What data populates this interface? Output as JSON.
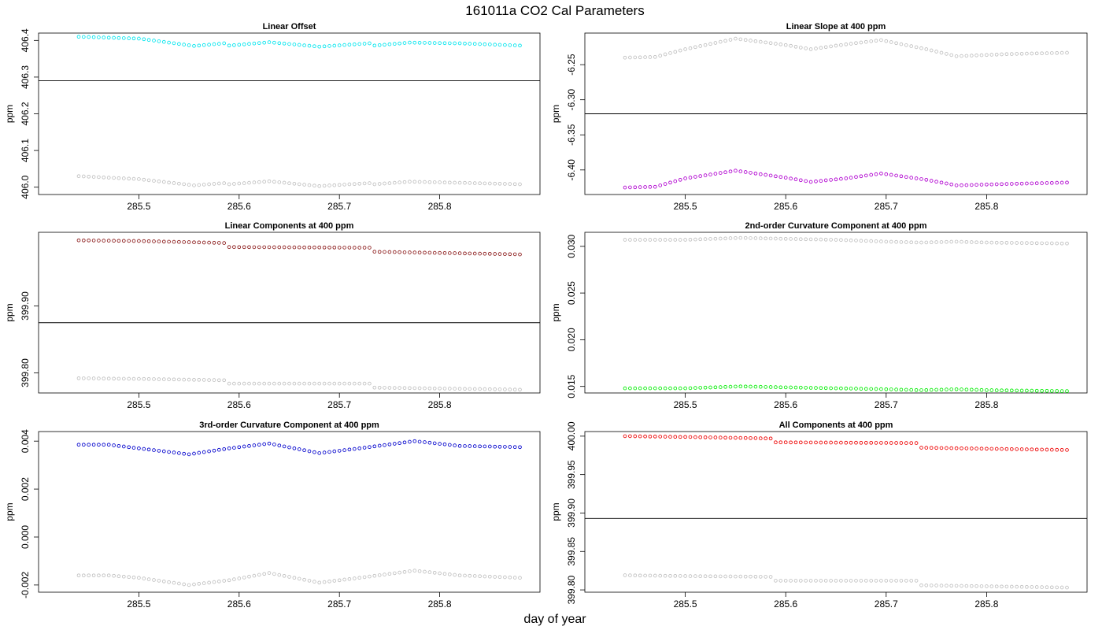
{
  "figure": {
    "title": "161011a   CO2 Cal Parameters",
    "xlabel": "day of year"
  },
  "colors": {
    "gray_points": "#c0c0c0",
    "reference_line": "#000000"
  },
  "chart_data": [
    {
      "type": "scatter",
      "title": "Linear Offset",
      "ylabel": "ppm",
      "xlim": [
        285.4,
        285.9
      ],
      "ylim": [
        405.98,
        406.42
      ],
      "xticks": [
        285.5,
        285.6,
        285.7,
        285.8
      ],
      "xtick_labels": [
        "285.5",
        "285.6",
        "285.7",
        "285.8"
      ],
      "yticks": [
        406.0,
        406.1,
        406.2,
        406.3,
        406.4
      ],
      "ytick_labels": [
        "406.0",
        "406.1",
        "406.2",
        "406.3",
        "406.4"
      ],
      "hline": 406.29,
      "x_start": 285.44,
      "x_step": 0.005,
      "n": 89,
      "series": [
        {
          "color": "#00e5ee",
          "knots": [
            [
              285.44,
              406.41
            ],
            [
              285.5,
              406.405
            ],
            [
              285.555,
              406.385
            ],
            [
              285.585,
              406.392
            ],
            [
              285.59,
              406.386
            ],
            [
              285.63,
              406.395
            ],
            [
              285.68,
              406.383
            ],
            [
              285.73,
              406.392
            ],
            [
              285.735,
              406.386
            ],
            [
              285.77,
              406.394
            ],
            [
              285.82,
              406.392
            ],
            [
              285.88,
              406.386
            ]
          ]
        },
        {
          "color": "#c0c0c0",
          "knots": [
            [
              285.44,
              406.03
            ],
            [
              285.5,
              406.022
            ],
            [
              285.555,
              406.005
            ],
            [
              285.585,
              406.011
            ],
            [
              285.59,
              406.008
            ],
            [
              285.63,
              406.016
            ],
            [
              285.68,
              406.003
            ],
            [
              285.73,
              406.011
            ],
            [
              285.735,
              406.008
            ],
            [
              285.77,
              406.015
            ],
            [
              285.82,
              406.012
            ],
            [
              285.88,
              406.008
            ]
          ]
        }
      ]
    },
    {
      "type": "scatter",
      "title": "Linear Slope at 400 ppm",
      "ylabel": "ppm",
      "xlim": [
        285.4,
        285.9
      ],
      "ylim": [
        -6.435,
        -6.205
      ],
      "xticks": [
        285.5,
        285.6,
        285.7,
        285.8
      ],
      "xtick_labels": [
        "285.5",
        "285.6",
        "285.7",
        "285.8"
      ],
      "yticks": [
        -6.25,
        -6.3,
        -6.35,
        -6.4
      ],
      "ytick_labels": [
        "-6.25",
        "-6.30",
        "-6.35",
        "-6.40"
      ],
      "hline": -6.32,
      "x_start": 285.44,
      "x_step": 0.005,
      "n": 89,
      "series": [
        {
          "color": "#c0c0c0",
          "knots": [
            [
              285.44,
              -6.24
            ],
            [
              285.47,
              -6.239
            ],
            [
              285.5,
              -6.228
            ],
            [
              285.55,
              -6.213
            ],
            [
              285.6,
              -6.222
            ],
            [
              285.625,
              -6.228
            ],
            [
              285.66,
              -6.221
            ],
            [
              285.695,
              -6.215
            ],
            [
              285.74,
              -6.228
            ],
            [
              285.77,
              -6.238
            ],
            [
              285.82,
              -6.235
            ],
            [
              285.88,
              -6.233
            ]
          ]
        },
        {
          "color": "#b000d0",
          "knots": [
            [
              285.44,
              -6.425
            ],
            [
              285.47,
              -6.424
            ],
            [
              285.5,
              -6.412
            ],
            [
              285.55,
              -6.401
            ],
            [
              285.6,
              -6.411
            ],
            [
              285.625,
              -6.417
            ],
            [
              285.66,
              -6.412
            ],
            [
              285.695,
              -6.405
            ],
            [
              285.74,
              -6.414
            ],
            [
              285.77,
              -6.422
            ],
            [
              285.82,
              -6.42
            ],
            [
              285.88,
              -6.418
            ]
          ]
        }
      ]
    },
    {
      "type": "scatter",
      "title": "Linear Components at 400 ppm",
      "ylabel": "ppm",
      "xlim": [
        285.4,
        285.9
      ],
      "ylim": [
        399.77,
        400.01
      ],
      "xticks": [
        285.5,
        285.6,
        285.7,
        285.8
      ],
      "xtick_labels": [
        "285.5",
        "285.6",
        "285.7",
        "285.8"
      ],
      "yticks": [
        399.8,
        399.9
      ],
      "ytick_labels": [
        "399.80",
        "399.90"
      ],
      "hline": 399.875,
      "x_start": 285.44,
      "x_step": 0.005,
      "n": 89,
      "series": [
        {
          "color": "#8b1a1a",
          "knots": [
            [
              285.44,
              399.998
            ],
            [
              285.5,
              399.997
            ],
            [
              285.585,
              399.994
            ],
            [
              285.59,
              399.988
            ],
            [
              285.73,
              399.987
            ],
            [
              285.735,
              399.981
            ],
            [
              285.88,
              399.977
            ]
          ]
        },
        {
          "color": "#c0c0c0",
          "knots": [
            [
              285.44,
              399.792
            ],
            [
              285.5,
              399.791
            ],
            [
              285.585,
              399.789
            ],
            [
              285.59,
              399.784
            ],
            [
              285.73,
              399.784
            ],
            [
              285.735,
              399.778
            ],
            [
              285.88,
              399.775
            ]
          ]
        }
      ]
    },
    {
      "type": "scatter",
      "title": "2nd-order Curvature Component at 400 ppm",
      "ylabel": "ppm",
      "xlim": [
        285.4,
        285.9
      ],
      "ylim": [
        0.0143,
        0.0315
      ],
      "xticks": [
        285.5,
        285.6,
        285.7,
        285.8
      ],
      "xtick_labels": [
        "285.5",
        "285.6",
        "285.7",
        "285.8"
      ],
      "yticks": [
        0.015,
        0.02,
        0.025,
        0.03
      ],
      "ytick_labels": [
        "0.015",
        "0.020",
        "0.025",
        "0.030"
      ],
      "x_start": 285.44,
      "x_step": 0.005,
      "n": 89,
      "series": [
        {
          "color": "#c0c0c0",
          "knots": [
            [
              285.44,
              0.0307
            ],
            [
              285.5,
              0.0307
            ],
            [
              285.555,
              0.0309
            ],
            [
              285.6,
              0.0308
            ],
            [
              285.65,
              0.0307
            ],
            [
              285.7,
              0.0305
            ],
            [
              285.735,
              0.0304
            ],
            [
              285.77,
              0.0305
            ],
            [
              285.8,
              0.0304
            ],
            [
              285.88,
              0.0303
            ]
          ]
        },
        {
          "color": "#00ee00",
          "knots": [
            [
              285.44,
              0.0148
            ],
            [
              285.5,
              0.0148
            ],
            [
              285.555,
              0.015
            ],
            [
              285.6,
              0.0149
            ],
            [
              285.65,
              0.0148
            ],
            [
              285.7,
              0.0147
            ],
            [
              285.735,
              0.0146
            ],
            [
              285.77,
              0.0147
            ],
            [
              285.8,
              0.0146
            ],
            [
              285.88,
              0.0145
            ]
          ]
        }
      ]
    },
    {
      "type": "scatter",
      "title": "3rd-order Curvature Component at 400 ppm",
      "ylabel": "ppm",
      "xlim": [
        285.4,
        285.9
      ],
      "ylim": [
        -0.0023,
        0.0044
      ],
      "xticks": [
        285.5,
        285.6,
        285.7,
        285.8
      ],
      "xtick_labels": [
        "285.5",
        "285.6",
        "285.7",
        "285.8"
      ],
      "yticks": [
        -0.002,
        0.0,
        0.002,
        0.004
      ],
      "ytick_labels": [
        "-0.002",
        "0.000",
        "0.002",
        "0.004"
      ],
      "x_start": 285.44,
      "x_step": 0.005,
      "n": 89,
      "series": [
        {
          "color": "#0000cc",
          "knots": [
            [
              285.44,
              0.00385
            ],
            [
              285.47,
              0.00385
            ],
            [
              285.5,
              0.0037
            ],
            [
              285.55,
              0.00345
            ],
            [
              285.59,
              0.0037
            ],
            [
              285.63,
              0.0039
            ],
            [
              285.68,
              0.0035
            ],
            [
              285.72,
              0.0037
            ],
            [
              285.775,
              0.004
            ],
            [
              285.82,
              0.0038
            ],
            [
              285.88,
              0.00375
            ]
          ]
        },
        {
          "color": "#c0c0c0",
          "knots": [
            [
              285.44,
              -0.0016
            ],
            [
              285.47,
              -0.0016
            ],
            [
              285.5,
              -0.0017
            ],
            [
              285.55,
              -0.002
            ],
            [
              285.59,
              -0.0018
            ],
            [
              285.63,
              -0.0015
            ],
            [
              285.68,
              -0.0019
            ],
            [
              285.72,
              -0.0017
            ],
            [
              285.775,
              -0.0014
            ],
            [
              285.82,
              -0.0016
            ],
            [
              285.88,
              -0.0017
            ]
          ]
        }
      ]
    },
    {
      "type": "scatter",
      "title": "All Components at 400 ppm",
      "ylabel": "ppm",
      "xlim": [
        285.4,
        285.9
      ],
      "ylim": [
        399.797,
        400.006
      ],
      "xticks": [
        285.5,
        285.6,
        285.7,
        285.8
      ],
      "xtick_labels": [
        "285.5",
        "285.6",
        "285.7",
        "285.8"
      ],
      "yticks": [
        399.8,
        399.85,
        399.9,
        399.95,
        400.0
      ],
      "ytick_labels": [
        "399.80",
        "399.85",
        "399.90",
        "399.95",
        "400.00"
      ],
      "hline": 399.893,
      "x_start": 285.44,
      "x_step": 0.005,
      "n": 89,
      "series": [
        {
          "color": "#ee0000",
          "knots": [
            [
              285.44,
              400.0
            ],
            [
              285.5,
              399.999
            ],
            [
              285.585,
              399.997
            ],
            [
              285.59,
              399.992
            ],
            [
              285.73,
              399.991
            ],
            [
              285.735,
              399.985
            ],
            [
              285.88,
              399.982
            ]
          ]
        },
        {
          "color": "#c0c0c0",
          "knots": [
            [
              285.44,
              399.819
            ],
            [
              285.5,
              399.818
            ],
            [
              285.585,
              399.817
            ],
            [
              285.59,
              399.812
            ],
            [
              285.73,
              399.812
            ],
            [
              285.735,
              399.806
            ],
            [
              285.88,
              399.803
            ]
          ]
        }
      ]
    }
  ]
}
